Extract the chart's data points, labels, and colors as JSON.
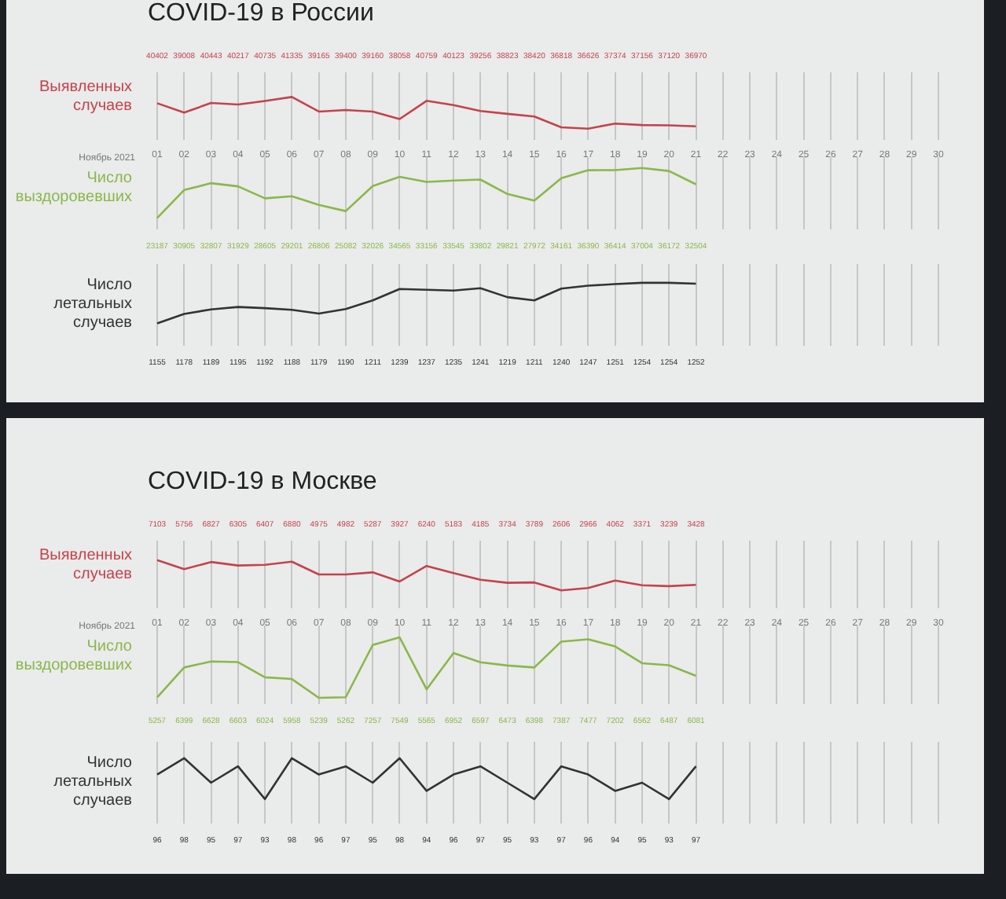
{
  "chart_data": [
    {
      "type": "line",
      "title": "COVID-19 в России",
      "ylabel": "Выявленных случаев",
      "xlabel": "Ноябрь 2021",
      "categories": [
        "01",
        "02",
        "03",
        "04",
        "05",
        "06",
        "07",
        "08",
        "09",
        "10",
        "11",
        "12",
        "13",
        "14",
        "15",
        "16",
        "17",
        "18",
        "19",
        "20",
        "21",
        "22",
        "23",
        "24",
        "25",
        "26",
        "27",
        "28",
        "29",
        "30"
      ],
      "values": [
        40402,
        39008,
        40443,
        40217,
        40735,
        41335,
        39165,
        39400,
        39160,
        38058,
        40759,
        40123,
        39256,
        38823,
        38420,
        36818,
        36626,
        37374,
        37156,
        37120,
        36970,
        null,
        null,
        null,
        null,
        null,
        null,
        null,
        null,
        null
      ],
      "color": "#c4434b",
      "data_labels": true,
      "grid": "x",
      "tick_labels": "x"
    },
    {
      "type": "line",
      "ylabel": "Число выздоровевших",
      "categories": [
        "01",
        "02",
        "03",
        "04",
        "05",
        "06",
        "07",
        "08",
        "09",
        "10",
        "11",
        "12",
        "13",
        "14",
        "15",
        "16",
        "17",
        "18",
        "19",
        "20",
        "21",
        "22",
        "23",
        "24",
        "25",
        "26",
        "27",
        "28",
        "29",
        "30"
      ],
      "values": [
        23187,
        30905,
        32807,
        31929,
        28605,
        29201,
        26806,
        25082,
        32026,
        34565,
        33156,
        33545,
        33802,
        29821,
        27972,
        34161,
        36390,
        36414,
        37004,
        36172,
        32504,
        null,
        null,
        null,
        null,
        null,
        null,
        null,
        null,
        null
      ],
      "color": "#8ab84a",
      "data_labels": true,
      "grid": "x",
      "tick_labels": false
    },
    {
      "type": "line",
      "ylabel": "Число летальных случаев",
      "categories": [
        "01",
        "02",
        "03",
        "04",
        "05",
        "06",
        "07",
        "08",
        "09",
        "10",
        "11",
        "12",
        "13",
        "14",
        "15",
        "16",
        "17",
        "18",
        "19",
        "20",
        "21",
        "22",
        "23",
        "24",
        "25",
        "26",
        "27",
        "28",
        "29",
        "30"
      ],
      "values": [
        1155,
        1178,
        1189,
        1195,
        1192,
        1188,
        1179,
        1190,
        1211,
        1239,
        1237,
        1235,
        1241,
        1219,
        1211,
        1240,
        1247,
        1251,
        1254,
        1254,
        1252,
        null,
        null,
        null,
        null,
        null,
        null,
        null,
        null,
        null
      ],
      "color": "#333333",
      "data_labels": true,
      "grid": "x",
      "tick_labels": false
    },
    {
      "type": "line",
      "title": "COVID-19 в Москве",
      "ylabel": "Выявленных случаев",
      "xlabel": "Ноябрь 2021",
      "categories": [
        "01",
        "02",
        "03",
        "04",
        "05",
        "06",
        "07",
        "08",
        "09",
        "10",
        "11",
        "12",
        "13",
        "14",
        "15",
        "16",
        "17",
        "18",
        "19",
        "20",
        "21",
        "22",
        "23",
        "24",
        "25",
        "26",
        "27",
        "28",
        "29",
        "30"
      ],
      "values": [
        7103,
        5756,
        6827,
        6305,
        6407,
        6880,
        4975,
        4982,
        5287,
        3927,
        6240,
        5183,
        4185,
        3734,
        3789,
        2606,
        2966,
        4062,
        3371,
        3239,
        3428,
        null,
        null,
        null,
        null,
        null,
        null,
        null,
        null,
        null
      ],
      "color": "#c4434b",
      "data_labels": true,
      "grid": "x",
      "tick_labels": "x"
    },
    {
      "type": "line",
      "ylabel": "Число выздоровевших",
      "categories": [
        "01",
        "02",
        "03",
        "04",
        "05",
        "06",
        "07",
        "08",
        "09",
        "10",
        "11",
        "12",
        "13",
        "14",
        "15",
        "16",
        "17",
        "18",
        "19",
        "20",
        "21",
        "22",
        "23",
        "24",
        "25",
        "26",
        "27",
        "28",
        "29",
        "30"
      ],
      "values": [
        5257,
        6399,
        6628,
        6603,
        6024,
        5958,
        5239,
        5262,
        7257,
        7549,
        5565,
        6952,
        6597,
        6473,
        6398,
        7387,
        7477,
        7202,
        6562,
        6487,
        6081,
        null,
        null,
        null,
        null,
        null,
        null,
        null,
        null,
        null
      ],
      "color": "#8ab84a",
      "data_labels": true,
      "grid": "x",
      "tick_labels": false
    },
    {
      "type": "line",
      "ylabel": "Число летальных случаев",
      "categories": [
        "01",
        "02",
        "03",
        "04",
        "05",
        "06",
        "07",
        "08",
        "09",
        "10",
        "11",
        "12",
        "13",
        "14",
        "15",
        "16",
        "17",
        "18",
        "19",
        "20",
        "21",
        "22",
        "23",
        "24",
        "25",
        "26",
        "27",
        "28",
        "29",
        "30"
      ],
      "values": [
        96,
        98,
        95,
        97,
        93,
        98,
        96,
        97,
        95,
        98,
        94,
        96,
        97,
        95,
        93,
        97,
        96,
        94,
        95,
        93,
        97,
        null,
        null,
        null,
        null,
        null,
        null,
        null,
        null,
        null
      ],
      "color": "#333333",
      "data_labels": true,
      "grid": "x",
      "tick_labels": false
    }
  ]
}
